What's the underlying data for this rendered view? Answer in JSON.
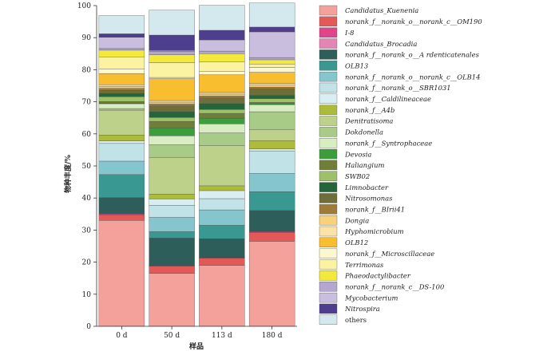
{
  "chart_data": {
    "type": "bar",
    "stacked": true,
    "xlabel": "样品",
    "ylabel": "物种丰度/%",
    "ylim": [
      0,
      100
    ],
    "yticks": [
      0,
      10,
      20,
      30,
      40,
      50,
      60,
      70,
      80,
      90,
      100
    ],
    "categories": [
      "0 d",
      "50 d",
      "113 d",
      "180 d"
    ],
    "grid": false,
    "legend_position": "right",
    "series": [
      {
        "name": "Candidatus_Kuenenia",
        "color": "#F4A19B",
        "italic": true,
        "values": [
          33.0,
          16.5,
          19.0,
          26.5
        ]
      },
      {
        "name": "norank_f__norank_o__norank_c__OM190",
        "color": "#E45858",
        "italic": true,
        "values": [
          1.8,
          2.2,
          2.2,
          2.8
        ]
      },
      {
        "name": "I-8",
        "color": "#E2438B",
        "italic": true,
        "values": [
          0.2,
          0.2,
          0.2,
          0.2
        ]
      },
      {
        "name": "Candidatus_Brocadia",
        "color": "#E486B4",
        "italic": true,
        "values": [
          0.1,
          0.1,
          0.1,
          0.1
        ]
      },
      {
        "name": "norank_f__norank_o__A rdenticatenales",
        "color": "#2E5E5A",
        "italic": true,
        "values": [
          5.0,
          8.5,
          5.8,
          6.5
        ]
      },
      {
        "name": "OLB13",
        "color": "#3A9892",
        "italic": true,
        "values": [
          7.2,
          2.0,
          4.2,
          5.9
        ]
      },
      {
        "name": "norank_f__norank_o__norank_c__OLB14",
        "color": "#85C6CE",
        "italic": true,
        "values": [
          4.2,
          4.5,
          4.8,
          5.7
        ]
      },
      {
        "name": "norank_f__norank_o__SBR1031",
        "color": "#C1E2E6",
        "italic": true,
        "values": [
          5.5,
          3.7,
          3.5,
          7.0
        ]
      },
      {
        "name": "norank_f__Caldilineaceae",
        "color": "#D9EEF2",
        "italic": true,
        "values": [
          0.8,
          2.0,
          2.5,
          0.6
        ]
      },
      {
        "name": "norank_f__A4b",
        "color": "#ADBB3A",
        "italic": true,
        "values": [
          1.8,
          1.5,
          1.5,
          2.6
        ]
      },
      {
        "name": "Denitratisoma",
        "color": "#BDD18A",
        "italic": true,
        "values": [
          7.8,
          11.5,
          12.5,
          3.5
        ]
      },
      {
        "name": "Dokdonella",
        "color": "#A9CB88",
        "italic": true,
        "values": [
          0.5,
          3.9,
          4.0,
          5.5
        ]
      },
      {
        "name": "norank_f__Syntrophaceae",
        "color": "#D9EDC3",
        "italic": true,
        "values": [
          1.5,
          2.8,
          2.8,
          2.2
        ]
      },
      {
        "name": "Devosia",
        "color": "#3C9E3A",
        "italic": true,
        "values": [
          0.1,
          2.5,
          1.8,
          0.3
        ]
      },
      {
        "name": "Haliangium",
        "color": "#717E36",
        "italic": true,
        "values": [
          0.6,
          2.0,
          1.5,
          0.4
        ]
      },
      {
        "name": "SWB02",
        "color": "#9DC069",
        "italic": true,
        "values": [
          1.5,
          1.2,
          1.2,
          1.2
        ]
      },
      {
        "name": "Limnobacter",
        "color": "#24663A",
        "italic": true,
        "values": [
          1.0,
          1.8,
          1.8,
          1.0
        ]
      },
      {
        "name": "Nitrosomonas",
        "color": "#6E6E3A",
        "italic": true,
        "values": [
          1.0,
          1.8,
          1.8,
          2.0
        ]
      },
      {
        "name": "norank_f__BIrii41",
        "color": "#9E7B36",
        "italic": true,
        "values": [
          0.6,
          0.6,
          0.6,
          0.6
        ]
      },
      {
        "name": "Dongia",
        "color": "#F7D27A",
        "italic": true,
        "values": [
          0.6,
          0.6,
          0.6,
          0.6
        ]
      },
      {
        "name": "Hyphomicrobium",
        "color": "#FBE2A7",
        "italic": true,
        "values": [
          0.5,
          0.5,
          0.5,
          0.5
        ]
      },
      {
        "name": "OLB12",
        "color": "#F9BE2F",
        "italic": true,
        "values": [
          3.5,
          6.8,
          5.5,
          3.5
        ]
      },
      {
        "name": "norank_f__Microscillaceae",
        "color": "#FDF7D1",
        "italic": true,
        "values": [
          1.5,
          0.4,
          1.0,
          1.5
        ]
      },
      {
        "name": "Terrimonas",
        "color": "#FBF2A2",
        "italic": true,
        "values": [
          3.7,
          4.6,
          3.0,
          1.1
        ]
      },
      {
        "name": "Phaeodactylibacter",
        "color": "#F3E93A",
        "italic": true,
        "values": [
          2.1,
          2.5,
          2.6,
          1.3
        ]
      },
      {
        "name": "norank_f__norank_c__DS-100",
        "color": "#B3A7CF",
        "italic": true,
        "values": [
          0.5,
          1.0,
          0.8,
          0.7
        ]
      },
      {
        "name": "Mycobacterium",
        "color": "#C9BEDD",
        "italic": true,
        "values": [
          3.5,
          0.3,
          3.5,
          8.0
        ]
      },
      {
        "name": "Nitrospira",
        "color": "#4E3E8E",
        "italic": true,
        "values": [
          1.1,
          4.8,
          3.0,
          1.5
        ]
      },
      {
        "name": "others",
        "color": "#D4E9EE",
        "italic": false,
        "values": [
          5.7,
          7.8,
          7.8,
          7.5
        ]
      }
    ]
  }
}
